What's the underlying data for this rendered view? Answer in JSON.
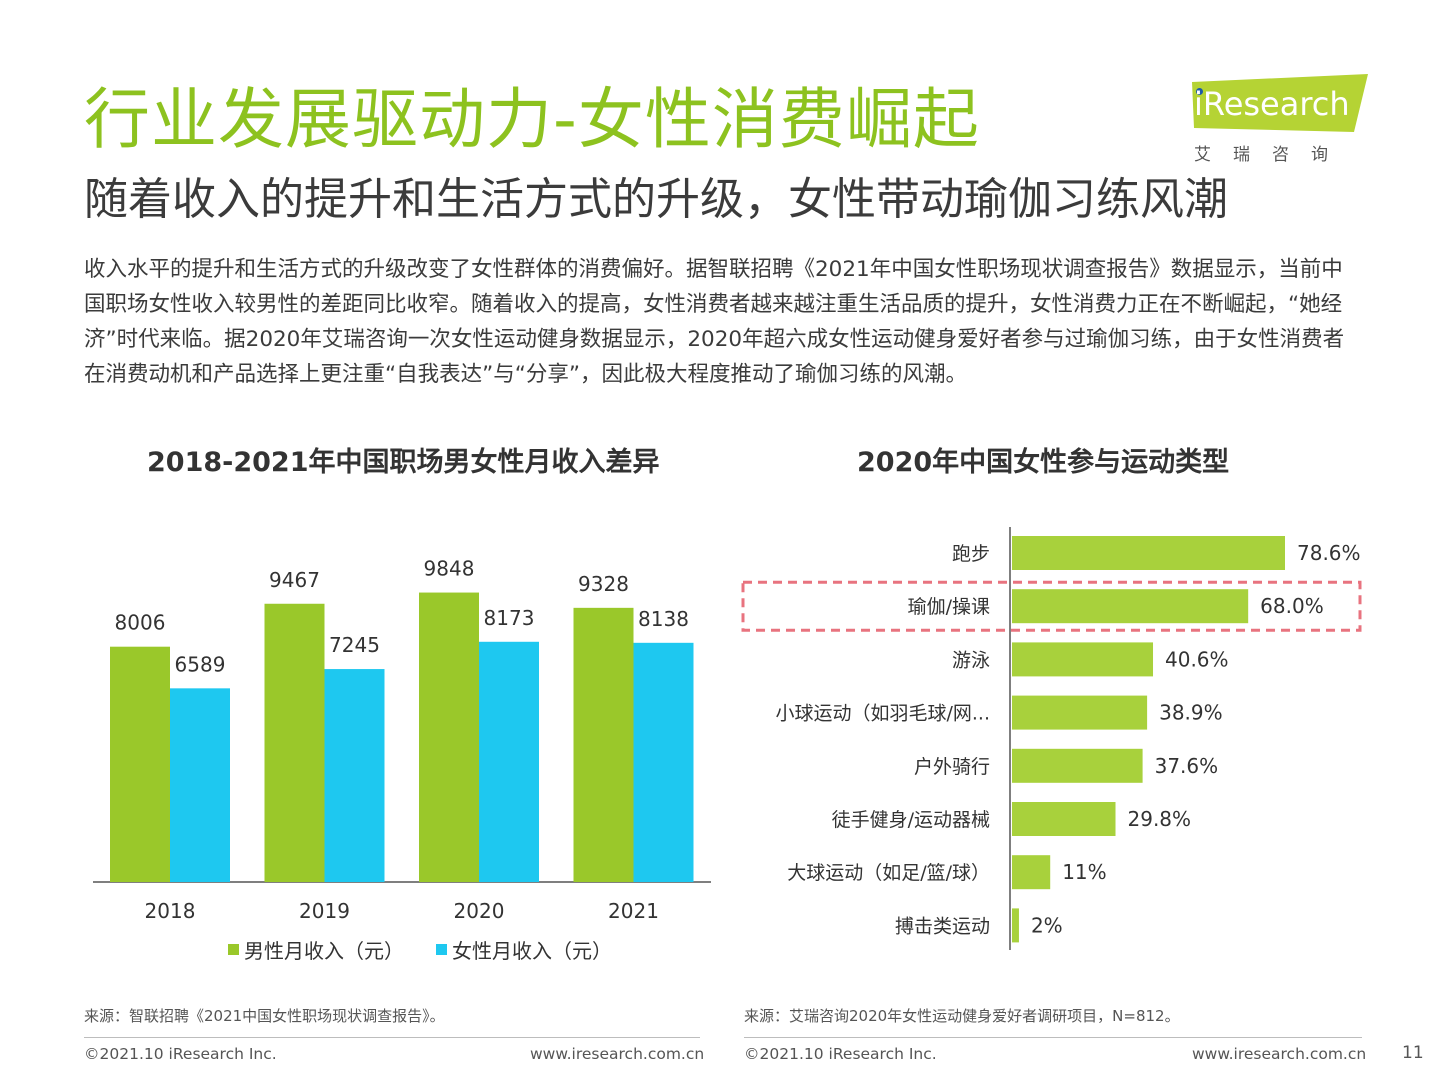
{
  "header": {
    "title": "行业发展驱动力-女性消费崛起",
    "subtitle": "随着收入的提升和生活方式的升级，女性带动瑜伽习练风潮",
    "intro": "收入水平的提升和生活方式的升级改变了女性群体的消费偏好。据智联招聘《2021年中国女性职场现状调查报告》数据显示，当前中国职场女性收入较男性的差距同比收窄。随着收入的提高，女性消费者越来越注重生活品质的提升，女性消费力正在不断崛起，“她经济”时代来临。据2020年艾瑞咨询一次女性运动健身数据显示，2020年超六成女性运动健身爱好者参与过瑜伽习练，由于女性消费者在消费动机和产品选择上更注重“自我表达”与“分享”，因此极大程度推动了瑜伽习练的风潮。"
  },
  "logo": {
    "text": "iResearch",
    "cn": "艾瑞咨询",
    "color": "#b5d334"
  },
  "colors": {
    "accent": "#8dc21f",
    "male": "#9ac82a",
    "female": "#1ec8f0",
    "bar_right": "#a8d13c",
    "highlight": "#e8737f"
  },
  "chart_data": [
    {
      "type": "bar",
      "title": "2018-2021年中国职场男女性月收入差异",
      "categories": [
        "2018",
        "2019",
        "2020",
        "2021"
      ],
      "series": [
        {
          "name": "男性月收入（元）",
          "values": [
            8006,
            9467,
            9848,
            9328
          ]
        },
        {
          "name": "女性月收入（元）",
          "values": [
            6589,
            7245,
            8173,
            8138
          ]
        }
      ],
      "ylim": [
        0,
        11500
      ],
      "legend": "bottom",
      "grid": false
    },
    {
      "type": "bar",
      "orientation": "horizontal",
      "title": "2020年中国女性参与运动类型",
      "categories": [
        "跑步",
        "瑜伽/操课",
        "游泳",
        "小球运动（如羽毛球/网...",
        "户外骑行",
        "徒手健身/运动器械",
        "大球运动（如足/篮/球）",
        "搏击类运动"
      ],
      "values": [
        78.6,
        68.0,
        40.6,
        38.9,
        37.6,
        29.8,
        11,
        2
      ],
      "value_labels": [
        "78.6%",
        "68.0%",
        "40.6%",
        "38.9%",
        "37.6%",
        "29.8%",
        "11%",
        "2%"
      ],
      "highlighted_category": "瑜伽/操课",
      "xlim": [
        0,
        100
      ],
      "grid": false
    }
  ],
  "footer": {
    "left_source": "来源：智联招聘《2021中国女性职场现状调查报告》。",
    "right_source": "来源：艾瑞咨询2020年女性运动健身爱好者调研项目，N=812。",
    "copyright": "©2021.10 iResearch Inc.",
    "url": "www.iresearch.com.cn",
    "page": "11"
  }
}
